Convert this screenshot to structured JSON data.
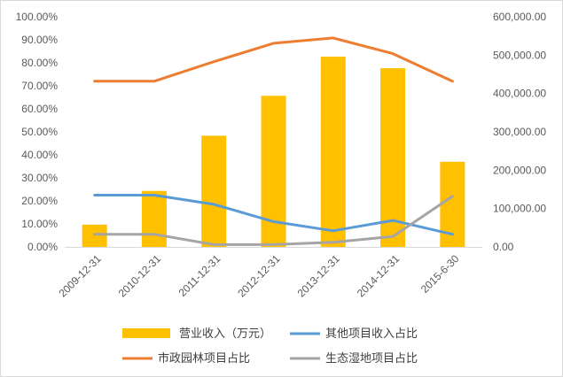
{
  "chart_data": {
    "type": "bar",
    "categories": [
      "2009-12-31",
      "2010-12-31",
      "2011-12-31",
      "2012-12-31",
      "2013-12-31",
      "2014-12-31",
      "2015-6-30"
    ],
    "series": [
      {
        "name": "营业收入（万元）",
        "type": "bar",
        "axis": "right",
        "color": "#ffc000",
        "values": [
          58000,
          146000,
          290000,
          394000,
          496000,
          466000,
          222000
        ]
      },
      {
        "name": "其他项目收入占比",
        "type": "line",
        "axis": "left",
        "color": "#5b9bd5",
        "values": [
          22.5,
          22.5,
          18.5,
          11.0,
          7.0,
          11.5,
          5.5
        ]
      },
      {
        "name": "市政园林项目占比",
        "type": "line",
        "axis": "left",
        "color": "#ed7d31",
        "values": [
          72.0,
          72.0,
          80.5,
          88.5,
          90.8,
          84.0,
          72.0
        ]
      },
      {
        "name": "生态湿地项目占比",
        "type": "line",
        "axis": "left",
        "color": "#a5a5a5",
        "values": [
          5.5,
          5.5,
          1.0,
          1.0,
          2.0,
          4.5,
          22.0
        ]
      }
    ],
    "y_left": {
      "ylim": [
        0,
        100
      ],
      "ticks": [
        0,
        10,
        20,
        30,
        40,
        50,
        60,
        70,
        80,
        90,
        100
      ],
      "tick_labels": [
        "0.00%",
        "10.00%",
        "20.00%",
        "30.00%",
        "40.00%",
        "50.00%",
        "60.00%",
        "70.00%",
        "80.00%",
        "90.00%",
        "100.00%"
      ]
    },
    "y_right": {
      "ylim": [
        0,
        600000
      ],
      "ticks": [
        0,
        100000,
        200000,
        300000,
        400000,
        500000,
        600000
      ],
      "tick_labels": [
        "0.00",
        "100,000.00",
        "200,000.00",
        "300,000.00",
        "400,000.00",
        "500,000.00",
        "600,000.00"
      ]
    },
    "grid": false,
    "legend_position": "bottom"
  }
}
